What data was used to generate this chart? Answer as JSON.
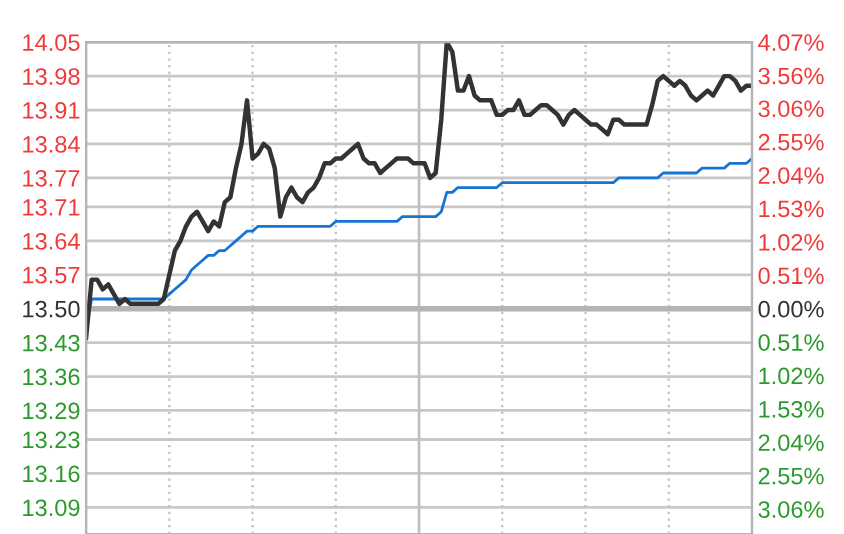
{
  "chart_data": {
    "type": "line",
    "categories": [
      null,
      null,
      null,
      null,
      null,
      null,
      null,
      null,
      null,
      null,
      null,
      null,
      null,
      null,
      null,
      null,
      null,
      null,
      null,
      null,
      null,
      null,
      null,
      null,
      null,
      null,
      null,
      null,
      null,
      null,
      null,
      null,
      null,
      null,
      null,
      null,
      null,
      null,
      null,
      null,
      null,
      null,
      null,
      null,
      null,
      null,
      null,
      null,
      null,
      null,
      null,
      null,
      null,
      null,
      null,
      null,
      null,
      null,
      null,
      null,
      null,
      null,
      null,
      null,
      null,
      null,
      null,
      null,
      null,
      null,
      null,
      null,
      null,
      null,
      null,
      null,
      null,
      null,
      null,
      null,
      null,
      null,
      null,
      null,
      null,
      null,
      null,
      null,
      null,
      null,
      null,
      null,
      null,
      null,
      null,
      null,
      null,
      null,
      null,
      null,
      null,
      null,
      null,
      null,
      null,
      null,
      null,
      null,
      null,
      null,
      null,
      null,
      null,
      null,
      null,
      null,
      null,
      null,
      null,
      null,
      null
    ],
    "ylim": [
      13.035,
      14.05
    ],
    "yticks": [
      {
        "value": 14.05,
        "label": "14.05"
      },
      {
        "value": 13.98,
        "label": "13.98"
      },
      {
        "value": 13.91,
        "label": "13.91"
      },
      {
        "value": 13.84,
        "label": "13.84"
      },
      {
        "value": 13.77,
        "label": "13.77"
      },
      {
        "value": 13.71,
        "label": "13.71"
      },
      {
        "value": 13.64,
        "label": "13.64"
      },
      {
        "value": 13.57,
        "label": "13.57"
      },
      {
        "value": 13.5,
        "label": "13.50"
      },
      {
        "value": 13.43,
        "label": "13.43"
      },
      {
        "value": 13.36,
        "label": "13.36"
      },
      {
        "value": 13.29,
        "label": "13.29"
      },
      {
        "value": 13.23,
        "label": "13.23"
      },
      {
        "value": 13.16,
        "label": "13.16"
      },
      {
        "value": 13.09,
        "label": "13.09"
      }
    ],
    "y2lim": [
      -3.44,
      4.07
    ],
    "y2ticks": [
      {
        "value": 4.07,
        "label": "4.07%"
      },
      {
        "value": 3.56,
        "label": "3.56%"
      },
      {
        "value": 3.06,
        "label": "3.06%"
      },
      {
        "value": 2.55,
        "label": "2.55%"
      },
      {
        "value": 2.04,
        "label": "2.04%"
      },
      {
        "value": 1.53,
        "label": "1.53%"
      },
      {
        "value": 1.02,
        "label": "1.02%"
      },
      {
        "value": 0.51,
        "label": "0.51%"
      },
      {
        "value": 0,
        "label": "0.00%"
      },
      {
        "value": -0.51,
        "label": "0.51%"
      },
      {
        "value": -1.02,
        "label": "1.02%"
      },
      {
        "value": -1.53,
        "label": "1.53%"
      },
      {
        "value": -2.04,
        "label": "2.04%"
      },
      {
        "value": -2.55,
        "label": "2.55%"
      },
      {
        "value": -3.06,
        "label": "3.06%"
      }
    ],
    "grid": true,
    "ref_lines": [
      {
        "axis": "y",
        "value": 13.5,
        "label": null,
        "color": "#b4b4b4"
      }
    ],
    "series": [
      {
        "color": "#333333",
        "values": [
          13.44,
          13.56,
          13.56,
          13.54,
          13.55,
          13.53,
          13.51,
          13.52,
          13.51,
          13.51,
          13.51,
          13.51,
          13.51,
          13.51,
          13.52,
          13.57,
          13.62,
          13.64,
          13.67,
          13.69,
          13.7,
          13.68,
          13.66,
          13.68,
          13.67,
          13.72,
          13.73,
          13.79,
          13.84,
          13.93,
          13.81,
          13.82,
          13.84,
          13.83,
          13.79,
          13.69,
          13.73,
          13.75,
          13.73,
          13.72,
          13.74,
          13.75,
          13.77,
          13.8,
          13.8,
          13.81,
          13.81,
          13.82,
          13.83,
          13.84,
          13.81,
          13.8,
          13.8,
          13.78,
          13.79,
          13.8,
          13.81,
          13.81,
          13.81,
          13.8,
          13.8,
          13.8,
          13.77,
          13.78,
          13.89,
          14.05,
          14.03,
          13.95,
          13.95,
          13.98,
          13.94,
          13.93,
          13.93,
          13.93,
          13.9,
          13.9,
          13.91,
          13.91,
          13.93,
          13.9,
          13.9,
          13.91,
          13.92,
          13.92,
          13.91,
          13.9,
          13.88,
          13.9,
          13.91,
          13.9,
          13.89,
          13.88,
          13.88,
          13.87,
          13.86,
          13.89,
          13.89,
          13.88,
          13.88,
          13.88,
          13.88,
          13.88,
          13.92,
          13.97,
          13.98,
          13.97,
          13.96,
          13.97,
          13.96,
          13.94,
          13.93,
          13.94,
          13.95,
          13.94,
          13.96,
          13.98,
          13.98,
          13.97,
          13.95,
          13.96,
          13.96
        ]
      },
      {
        "color": "#1874d2",
        "values": [
          13.46,
          13.52,
          13.52,
          13.52,
          13.52,
          13.52,
          13.52,
          13.52,
          13.52,
          13.52,
          13.52,
          13.52,
          13.52,
          13.52,
          13.52,
          13.53,
          13.54,
          13.55,
          13.56,
          13.58,
          13.59,
          13.6,
          13.61,
          13.61,
          13.62,
          13.62,
          13.63,
          13.64,
          13.65,
          13.66,
          13.66,
          13.67,
          13.67,
          13.67,
          13.67,
          13.67,
          13.67,
          13.67,
          13.67,
          13.67,
          13.67,
          13.67,
          13.67,
          13.67,
          13.67,
          13.68,
          13.68,
          13.68,
          13.68,
          13.68,
          13.68,
          13.68,
          13.68,
          13.68,
          13.68,
          13.68,
          13.68,
          13.69,
          13.69,
          13.69,
          13.69,
          13.69,
          13.69,
          13.69,
          13.7,
          13.74,
          13.74,
          13.75,
          13.75,
          13.75,
          13.75,
          13.75,
          13.75,
          13.75,
          13.75,
          13.76,
          13.76,
          13.76,
          13.76,
          13.76,
          13.76,
          13.76,
          13.76,
          13.76,
          13.76,
          13.76,
          13.76,
          13.76,
          13.76,
          13.76,
          13.76,
          13.76,
          13.76,
          13.76,
          13.76,
          13.76,
          13.77,
          13.77,
          13.77,
          13.77,
          13.77,
          13.77,
          13.77,
          13.77,
          13.78,
          13.78,
          13.78,
          13.78,
          13.78,
          13.78,
          13.78,
          13.79,
          13.79,
          13.79,
          13.79,
          13.79,
          13.8,
          13.8,
          13.8,
          13.8,
          13.81
        ]
      }
    ]
  }
}
